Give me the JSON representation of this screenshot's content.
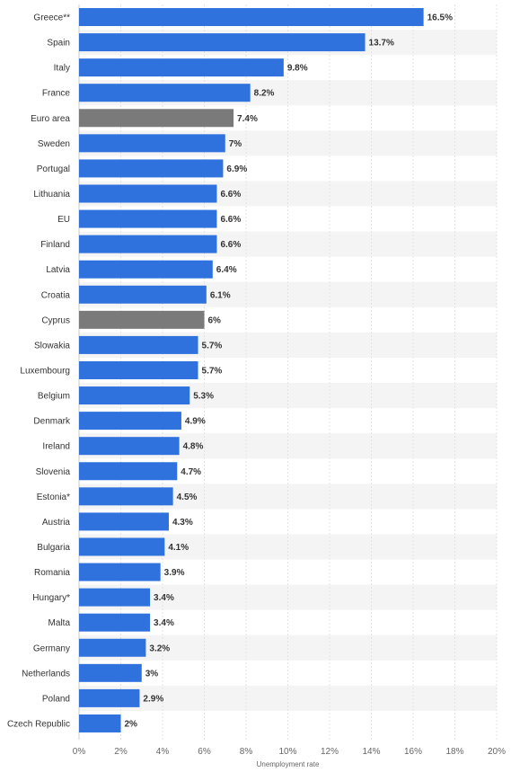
{
  "chart_data": {
    "type": "bar",
    "orientation": "horizontal",
    "xlabel": "Unemployment rate",
    "xlim": [
      0,
      20
    ],
    "ticks": [
      "0%",
      "2%",
      "4%",
      "6%",
      "8%",
      "10%",
      "12%",
      "14%",
      "16%",
      "18%",
      "20%"
    ],
    "grid": "vertical",
    "colors": {
      "default": "#2f72de",
      "highlight": "#7a7a7a"
    },
    "categories": [
      "Greece**",
      "Spain",
      "Italy",
      "France",
      "Euro area",
      "Sweden",
      "Portugal",
      "Lithuania",
      "EU",
      "Finland",
      "Latvia",
      "Croatia",
      "Cyprus",
      "Slowakia",
      "Luxembourg",
      "Belgium",
      "Denmark",
      "Ireland",
      "Slovenia",
      "Estonia*",
      "Austria",
      "Bulgaria",
      "Romania",
      "Hungary*",
      "Malta",
      "Germany",
      "Netherlands",
      "Poland",
      "Czech Republic"
    ],
    "values": [
      16.5,
      13.7,
      9.8,
      8.2,
      7.4,
      7,
      6.9,
      6.6,
      6.6,
      6.6,
      6.4,
      6.1,
      6,
      5.7,
      5.7,
      5.3,
      4.9,
      4.8,
      4.7,
      4.5,
      4.3,
      4.1,
      3.9,
      3.4,
      3.4,
      3.2,
      3,
      2.9,
      2
    ],
    "value_labels": [
      "16.5%",
      "13.7%",
      "9.8%",
      "8.2%",
      "7.4%",
      "7%",
      "6.9%",
      "6.6%",
      "6.6%",
      "6.6%",
      "6.4%",
      "6.1%",
      "6%",
      "5.7%",
      "5.7%",
      "5.3%",
      "4.9%",
      "4.8%",
      "4.7%",
      "4.5%",
      "4.3%",
      "4.1%",
      "3.9%",
      "3.4%",
      "3.4%",
      "3.2%",
      "3%",
      "2.9%",
      "2%"
    ],
    "highlighted": [
      "Euro area",
      "Cyprus"
    ]
  }
}
